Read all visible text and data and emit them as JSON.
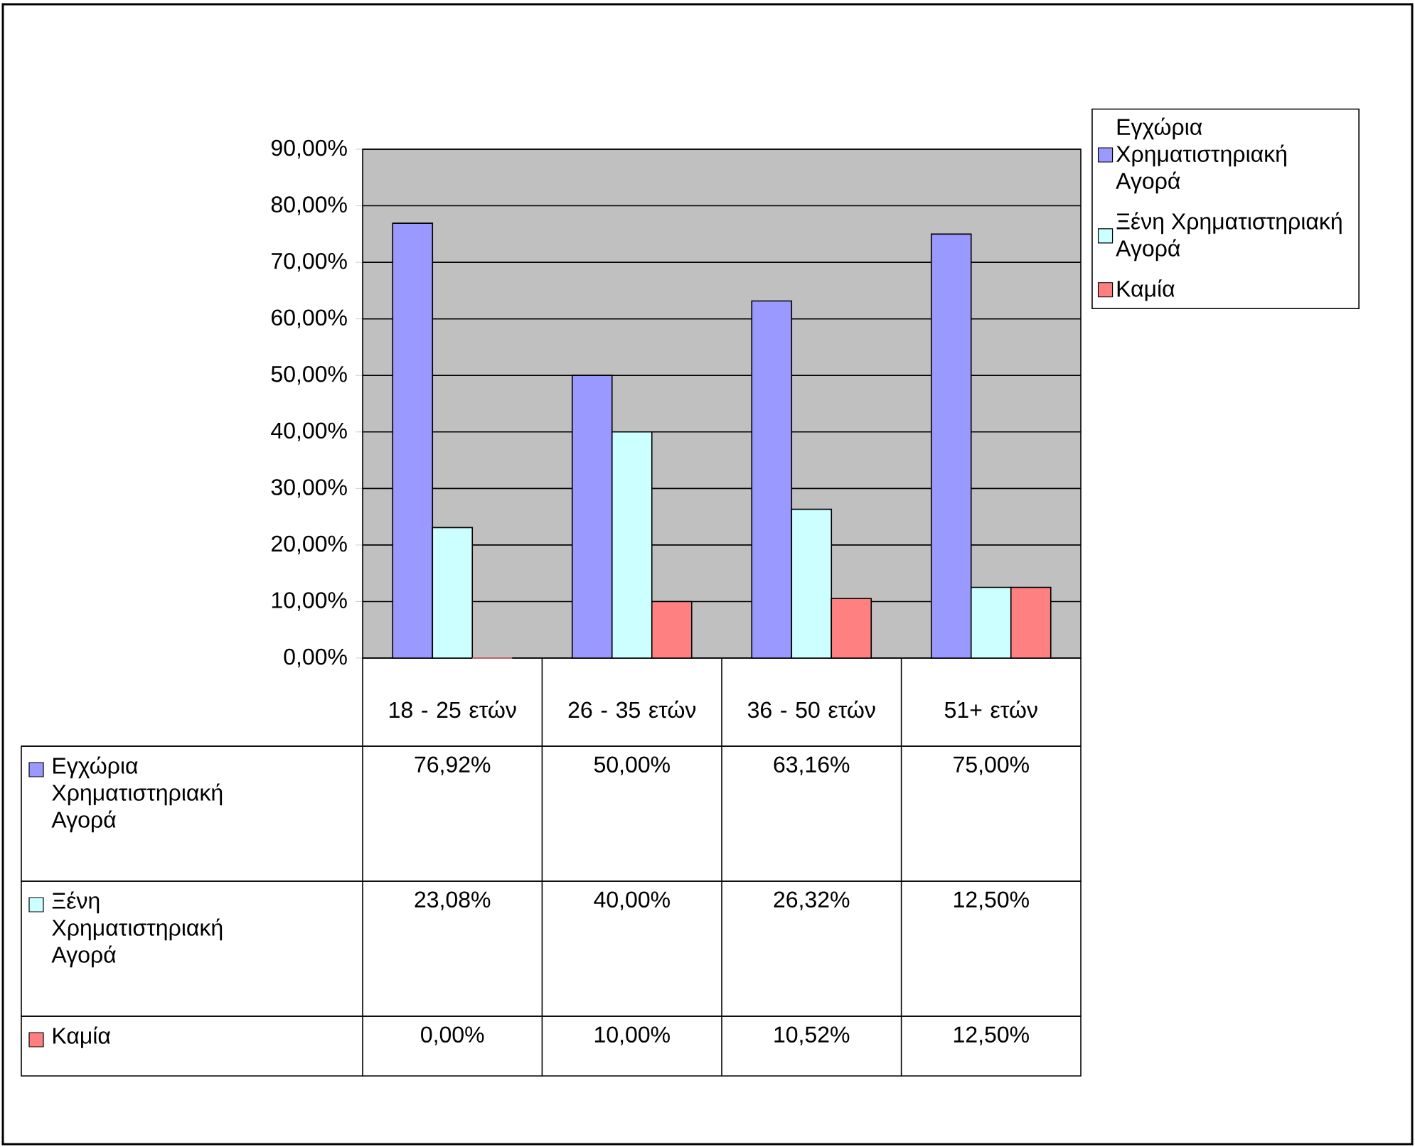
{
  "chart_data": {
    "type": "bar",
    "categories": [
      "18 - 25 ετών",
      "26 - 35 ετών",
      "36 - 50 ετών",
      "51+ ετών"
    ],
    "series": [
      {
        "name": "Εγχώρια Χρηματιστηριακή Αγορά",
        "color": "#9999ff",
        "values": [
          76.92,
          50.0,
          63.16,
          75.0
        ],
        "value_labels": [
          "76,92%",
          "50,00%",
          "63,16%",
          "75,00%"
        ]
      },
      {
        "name": "Ξένη Χρηματιστηριακή Αγορά",
        "color": "#ccffff",
        "values": [
          23.08,
          40.0,
          26.32,
          12.5
        ],
        "value_labels": [
          "23,08%",
          "40,00%",
          "26,32%",
          "12,50%"
        ]
      },
      {
        "name": "Καμία",
        "color": "#ff8080",
        "values": [
          0.0,
          10.0,
          10.52,
          12.5
        ],
        "value_labels": [
          "0,00%",
          "10,00%",
          "10,52%",
          "12,50%"
        ]
      }
    ],
    "ylim": [
      0,
      90
    ],
    "yticks": [
      {
        "value": 0,
        "label": "0,00%"
      },
      {
        "value": 10,
        "label": "10,00%"
      },
      {
        "value": 20,
        "label": "20,00%"
      },
      {
        "value": 30,
        "label": "30,00%"
      },
      {
        "value": 40,
        "label": "40,00%"
      },
      {
        "value": 50,
        "label": "50,00%"
      },
      {
        "value": 60,
        "label": "60,00%"
      },
      {
        "value": 70,
        "label": "70,00%"
      },
      {
        "value": 80,
        "label": "80,00%"
      },
      {
        "value": 90,
        "label": "90,00%"
      }
    ],
    "grid": "y",
    "legend": "right"
  }
}
